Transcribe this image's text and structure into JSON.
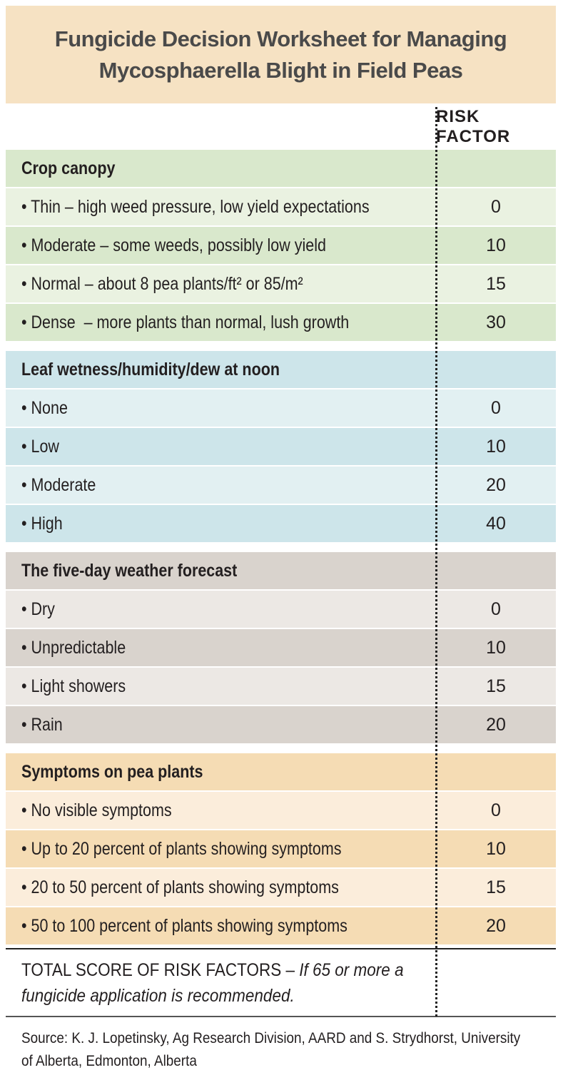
{
  "title": "Fungicide Decision Worksheet for Managing Mycosphaerella Blight in Field Peas",
  "column_header": "RISK FACTOR",
  "sections": [
    {
      "heading": "Crop canopy",
      "rows": [
        [
          "• Thin – high weed pressure, low yield expectations",
          0
        ],
        [
          "• Moderate – some weeds, possibly low yield",
          10
        ],
        [
          "• Normal – about 8 pea plants/ft² or 85/m²",
          15
        ],
        [
          "• Dense  – more plants than normal, lush growth",
          30
        ]
      ]
    },
    {
      "heading": "Leaf wetness/humidity/dew at noon",
      "rows": [
        [
          "• None",
          0
        ],
        [
          "• Low",
          10
        ],
        [
          "• Moderate",
          20
        ],
        [
          "• High",
          40
        ]
      ]
    },
    {
      "heading": "The five-day weather forecast",
      "rows": [
        [
          "• Dry",
          0
        ],
        [
          "• Unpredictable",
          10
        ],
        [
          "• Light showers",
          15
        ],
        [
          "• Rain",
          20
        ]
      ]
    },
    {
      "heading": "Symptoms on pea plants",
      "rows": [
        [
          "• No visible symptoms",
          0
        ],
        [
          "• Up to 20 percent of plants showing symptoms",
          10
        ],
        [
          "• 20 to 50 percent of plants showing symptoms",
          15
        ],
        [
          "• 50 to 100 percent of plants showing symptoms",
          20
        ]
      ]
    }
  ],
  "total": {
    "label": "TOTAL SCORE OF RISK FACTORS –",
    "note": "If 65 or more a fungicide application is recommended."
  },
  "source": "Source: K. J. Lopetinsky, Ag Research Division, AARD and S. Strydhorst, University of Alberta, Edmonton, Alberta"
}
